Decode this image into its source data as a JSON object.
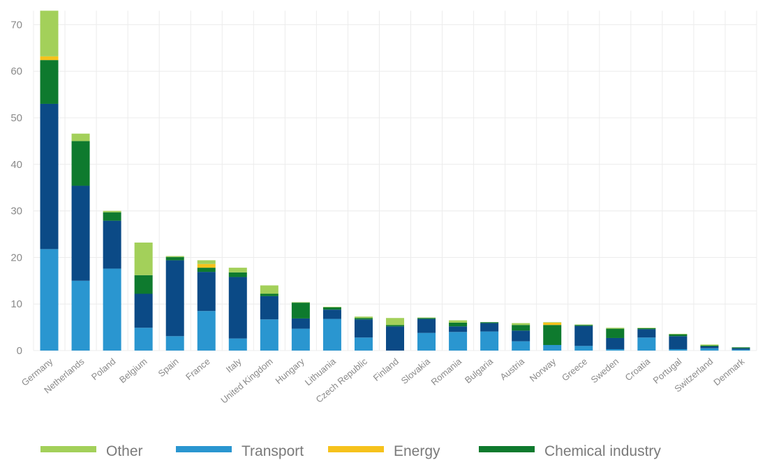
{
  "chart_data": {
    "type": "bar",
    "stacked": true,
    "title": "",
    "xlabel": "",
    "ylabel": "",
    "ylim": [
      0,
      73
    ],
    "yticks": [
      0,
      10,
      20,
      30,
      40,
      50,
      60,
      70
    ],
    "grid": true,
    "legend_position": "bottom",
    "categories": [
      "Germany",
      "Netherlands",
      "Poland",
      "Belgium",
      "Spain",
      "France",
      "Italy",
      "United Kingdom",
      "Hungary",
      "Lithuania",
      "Czech Republic",
      "Finland",
      "Slovakia",
      "Romania",
      "Bulgaria",
      "Austria",
      "Norway",
      "Greece",
      "Sweden",
      "Croatia",
      "Portugal",
      "Switzerland",
      "Denmark"
    ],
    "series": [
      {
        "key": "transport_light",
        "color": "#2a96d0",
        "values": [
          21.8,
          15.0,
          17.6,
          4.9,
          3.1,
          8.5,
          2.6,
          6.7,
          4.7,
          6.8,
          2.8,
          0.0,
          3.8,
          4.0,
          4.1,
          2.0,
          1.2,
          1.0,
          0.3,
          2.8,
          0.3,
          0.5,
          0.2
        ]
      },
      {
        "key": "transport_dark",
        "color": "#0b4a86",
        "values": [
          31.2,
          20.4,
          10.3,
          7.3,
          16.3,
          8.4,
          13.2,
          5.0,
          2.2,
          2.0,
          3.9,
          5.2,
          3.0,
          1.2,
          1.8,
          2.3,
          0.0,
          4.3,
          2.4,
          1.8,
          2.8,
          0.4,
          0.3
        ]
      },
      {
        "key": "chemical",
        "name": "Chemical industry",
        "color": "#0e7a2e",
        "values": [
          9.4,
          9.6,
          1.8,
          4.0,
          0.7,
          0.9,
          1.0,
          0.5,
          3.4,
          0.5,
          0.3,
          0.3,
          0.2,
          0.8,
          0.2,
          1.2,
          4.3,
          0.2,
          2.0,
          0.2,
          0.4,
          0.2,
          0.2
        ]
      },
      {
        "key": "energy",
        "name": "Energy",
        "color": "#f6c21c",
        "values": [
          0.8,
          0.0,
          0.0,
          0.0,
          0.0,
          0.8,
          0.0,
          0.0,
          0.0,
          0.0,
          0.0,
          0.0,
          0.0,
          0.0,
          0.0,
          0.0,
          0.5,
          0.0,
          0.0,
          0.0,
          0.0,
          0.0,
          0.0
        ]
      },
      {
        "key": "other",
        "name": "Other",
        "color": "#a3d05a",
        "values": [
          9.8,
          1.6,
          0.3,
          7.0,
          0.2,
          0.8,
          1.0,
          1.8,
          0.1,
          0.1,
          0.3,
          1.5,
          0.1,
          0.5,
          0.0,
          0.4,
          0.1,
          0.1,
          0.2,
          0.1,
          0.1,
          0.2,
          0.0
        ]
      }
    ],
    "legend": [
      {
        "label": "Other",
        "color": "#a3d05a"
      },
      {
        "label": "Transport",
        "color": "#2a96d0"
      },
      {
        "label": "Energy",
        "color": "#f6c21c"
      },
      {
        "label": "Chemical industry",
        "color": "#0e7a2e"
      }
    ]
  }
}
